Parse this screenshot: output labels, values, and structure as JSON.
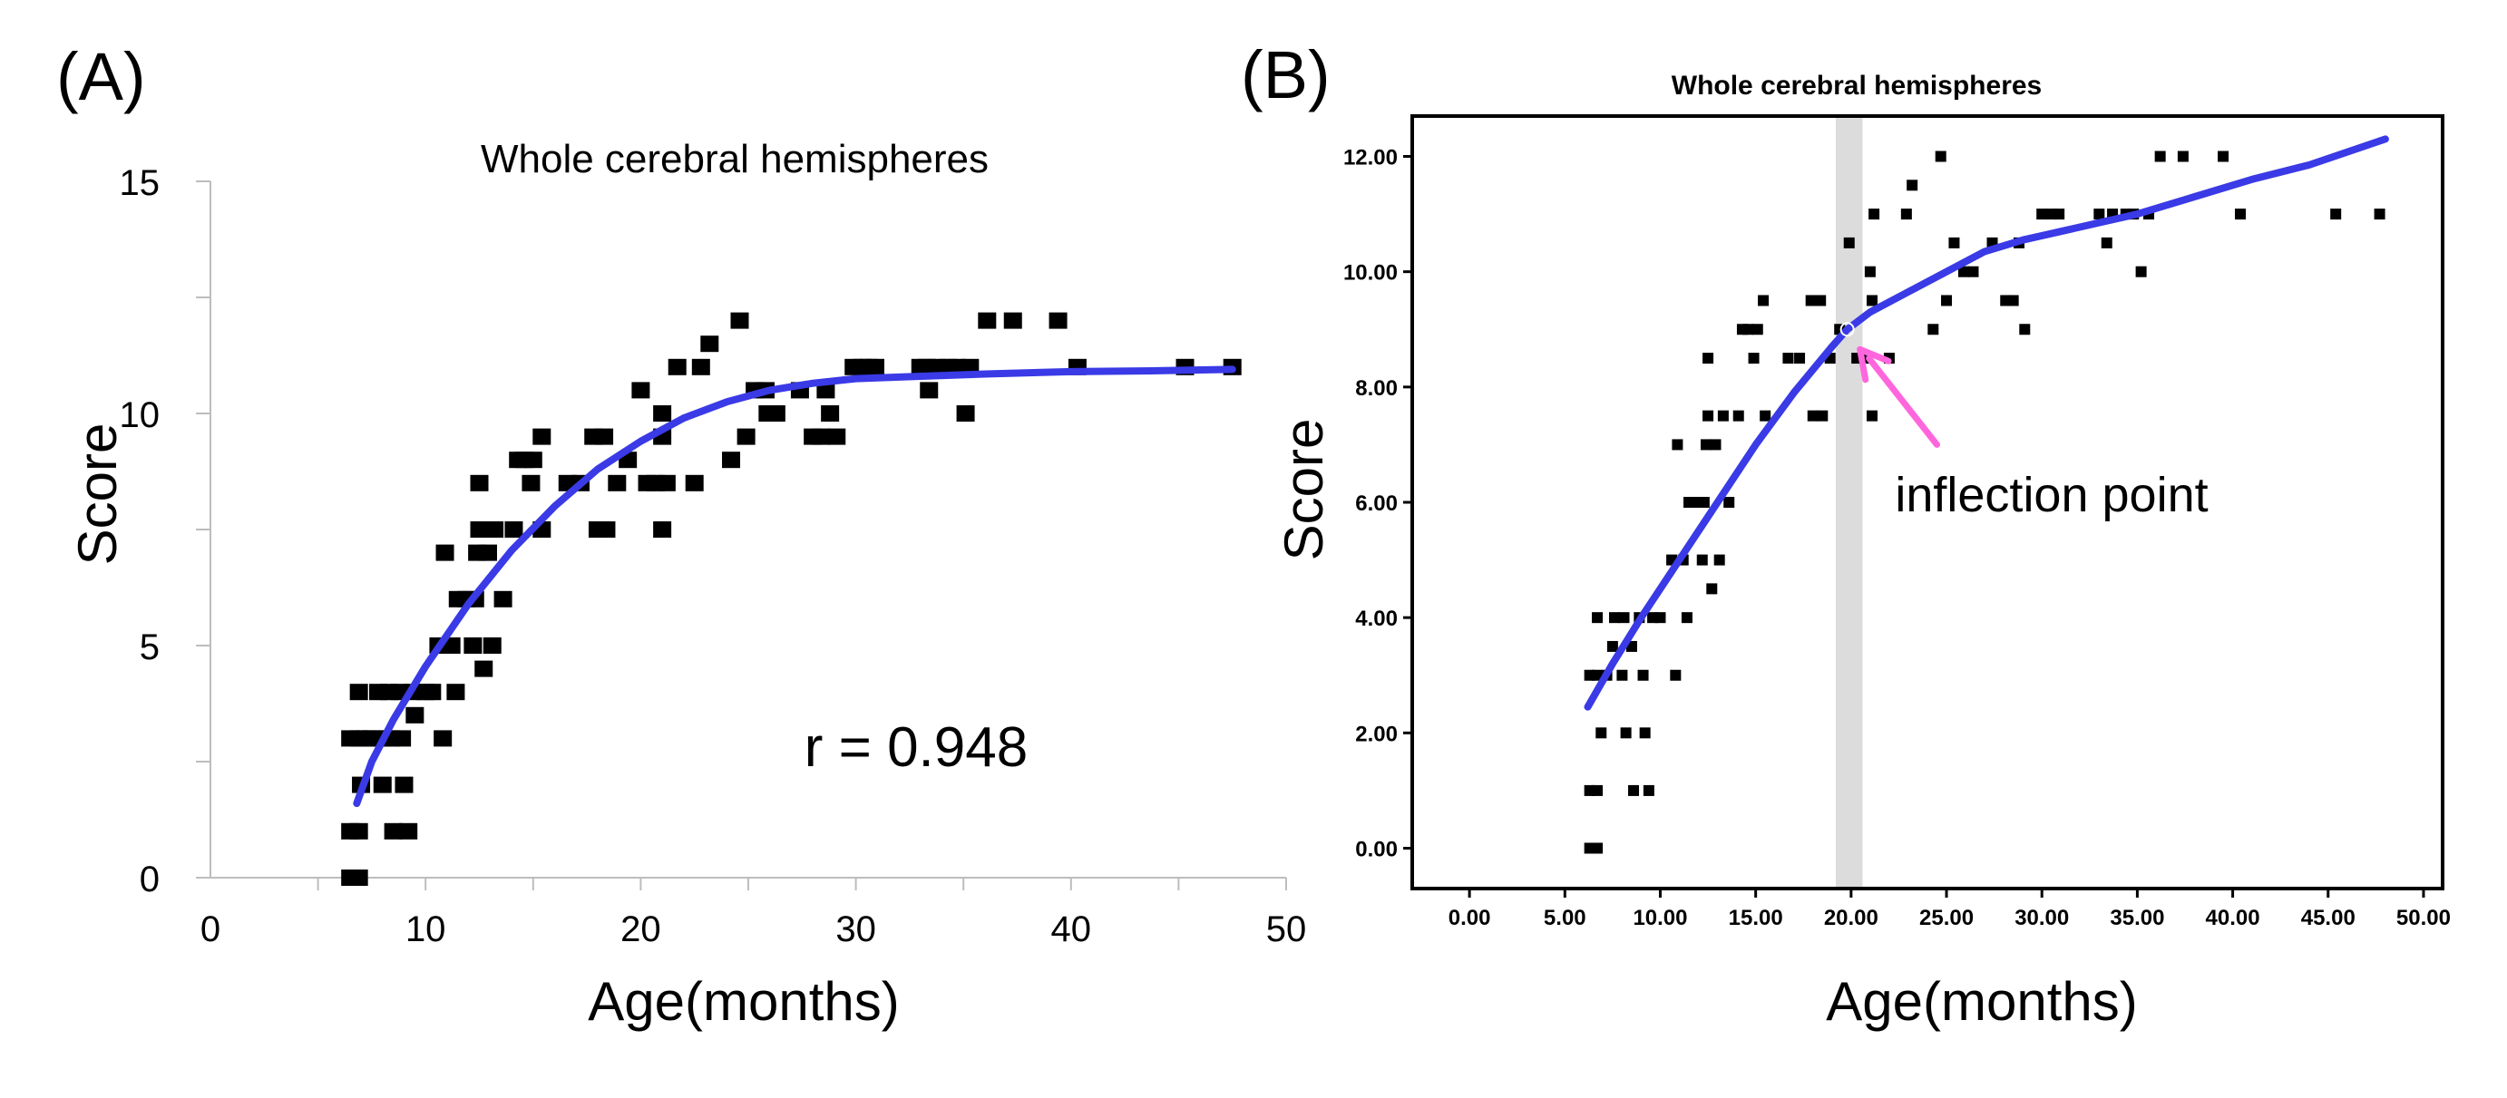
{
  "colors": {
    "fit": "#3a3ae6",
    "arrow": "#ff66dd",
    "point": "#000000",
    "band": "#dcdcdc"
  },
  "chart_data": [
    {
      "panel": "(A)",
      "type": "scatter",
      "title": "Whole cerebral hemispheres",
      "xlabel": "Age(months)",
      "ylabel": "Score",
      "xlim": [
        0,
        50
      ],
      "ylim": [
        0,
        15
      ],
      "xticks": [
        0,
        10,
        20,
        30,
        40,
        50
      ],
      "yticks": [
        0,
        5,
        10,
        15
      ],
      "xtick_labels": [
        "0",
        "10",
        "20",
        "30",
        "40",
        "50"
      ],
      "ytick_labels": [
        "0",
        "5",
        "10",
        "15"
      ],
      "annotation": "r = 0.948",
      "points": [
        [
          6.5,
          0
        ],
        [
          6.9,
          0
        ],
        [
          6.5,
          1
        ],
        [
          6.9,
          1
        ],
        [
          6.5,
          3
        ],
        [
          6.9,
          3
        ],
        [
          7.2,
          3
        ],
        [
          6.9,
          4
        ],
        [
          7.0,
          2
        ],
        [
          7.5,
          3
        ],
        [
          7.8,
          4
        ],
        [
          8.0,
          3
        ],
        [
          8.0,
          2
        ],
        [
          8.3,
          4
        ],
        [
          8.4,
          3
        ],
        [
          8.5,
          1
        ],
        [
          8.8,
          4
        ],
        [
          8.9,
          3
        ],
        [
          9.0,
          2
        ],
        [
          9.2,
          1
        ],
        [
          9.4,
          4
        ],
        [
          9.5,
          3.5
        ],
        [
          10.0,
          4
        ],
        [
          10.3,
          4
        ],
        [
          10.6,
          5
        ],
        [
          10.8,
          3
        ],
        [
          10.9,
          7
        ],
        [
          11.2,
          5
        ],
        [
          11.4,
          4
        ],
        [
          11.5,
          6
        ],
        [
          11.9,
          6
        ],
        [
          12.2,
          5
        ],
        [
          12.3,
          6
        ],
        [
          12.4,
          7
        ],
        [
          12.5,
          7.5
        ],
        [
          12.5,
          8.5
        ],
        [
          12.7,
          4.5
        ],
        [
          12.9,
          7
        ],
        [
          13.1,
          5
        ],
        [
          13.2,
          7.5
        ],
        [
          13.6,
          6
        ],
        [
          14.1,
          7.5
        ],
        [
          14.3,
          9
        ],
        [
          14.6,
          9
        ],
        [
          14.9,
          8.5
        ],
        [
          15.0,
          9
        ],
        [
          15.4,
          9.5
        ],
        [
          15.4,
          7.5
        ],
        [
          16.6,
          8.5
        ],
        [
          17.2,
          8.5
        ],
        [
          17.8,
          9.5
        ],
        [
          18.0,
          7.5
        ],
        [
          18.3,
          9.5
        ],
        [
          18.4,
          7.5
        ],
        [
          18.9,
          8.5
        ],
        [
          19.4,
          9
        ],
        [
          20.0,
          10.5
        ],
        [
          20.3,
          8.5
        ],
        [
          20.7,
          8.5
        ],
        [
          21.0,
          10
        ],
        [
          21.0,
          9.5
        ],
        [
          21.0,
          7.5
        ],
        [
          21.2,
          8.5
        ],
        [
          21.7,
          11
        ],
        [
          22.5,
          8.5
        ],
        [
          22.8,
          11
        ],
        [
          23.2,
          11.5
        ],
        [
          24.2,
          9
        ],
        [
          24.6,
          12
        ],
        [
          24.9,
          9.5
        ],
        [
          25.3,
          10.5
        ],
        [
          25.8,
          10.5
        ],
        [
          25.9,
          10
        ],
        [
          26.3,
          10
        ],
        [
          27.4,
          10.5
        ],
        [
          28.0,
          9.5
        ],
        [
          28.4,
          9.5
        ],
        [
          28.6,
          10.5
        ],
        [
          28.8,
          10
        ],
        [
          29.1,
          9.5
        ],
        [
          29.9,
          11
        ],
        [
          30.3,
          11
        ],
        [
          30.6,
          11
        ],
        [
          30.9,
          11
        ],
        [
          33.0,
          11
        ],
        [
          33.3,
          11
        ],
        [
          33.4,
          10.5
        ],
        [
          33.8,
          11
        ],
        [
          34.3,
          11
        ],
        [
          34.7,
          11
        ],
        [
          35.1,
          10
        ],
        [
          35.3,
          11
        ],
        [
          36.1,
          12
        ],
        [
          37.3,
          12
        ],
        [
          39.4,
          12
        ],
        [
          40.3,
          11
        ],
        [
          45.3,
          11
        ],
        [
          47.5,
          11
        ]
      ],
      "fit_line": [
        [
          6.8,
          1.6
        ],
        [
          7.5,
          2.5
        ],
        [
          8.5,
          3.4
        ],
        [
          10,
          4.55
        ],
        [
          12,
          5.9
        ],
        [
          14,
          7.05
        ],
        [
          16,
          8.0
        ],
        [
          18,
          8.8
        ],
        [
          20,
          9.4
        ],
        [
          22,
          9.9
        ],
        [
          24,
          10.25
        ],
        [
          26,
          10.5
        ],
        [
          28,
          10.65
        ],
        [
          30,
          10.75
        ],
        [
          33,
          10.8
        ],
        [
          36,
          10.85
        ],
        [
          40,
          10.9
        ],
        [
          44,
          10.92
        ],
        [
          47.5,
          10.95
        ]
      ]
    },
    {
      "panel": "(B)",
      "type": "scatter",
      "title": "Whole cerebral hemispheres",
      "xlabel": "Age(months)",
      "ylabel": "Score",
      "xlim": [
        -3,
        51
      ],
      "ylim": [
        -0.7,
        12.7
      ],
      "xticks": [
        0,
        5,
        10,
        15,
        20,
        25,
        30,
        35,
        40,
        45,
        50
      ],
      "yticks": [
        0,
        2,
        4,
        6,
        8,
        10,
        12
      ],
      "xtick_labels": [
        "0.00",
        "5.00",
        "10.00",
        "15.00",
        "20.00",
        "25.00",
        "30.00",
        "35.00",
        "40.00",
        "45.00",
        "50.00"
      ],
      "ytick_labels": [
        "0.00",
        "2.00",
        "4.00",
        "6.00",
        "8.00",
        "10.00",
        "12.00"
      ],
      "annotation": "inflection point",
      "highlight_x": [
        19.2,
        20.6
      ],
      "inflection": [
        19.8,
        9.0
      ],
      "arrow_from": [
        24.5,
        7.0
      ],
      "points": [
        [
          6.3,
          0
        ],
        [
          6.7,
          0
        ],
        [
          6.3,
          1
        ],
        [
          6.7,
          1
        ],
        [
          6.3,
          3
        ],
        [
          6.7,
          3
        ],
        [
          6.9,
          2
        ],
        [
          6.7,
          4
        ],
        [
          7.2,
          3
        ],
        [
          7.5,
          3.5
        ],
        [
          7.6,
          4
        ],
        [
          8.0,
          3
        ],
        [
          8.1,
          4
        ],
        [
          8.2,
          2
        ],
        [
          8.5,
          3.5
        ],
        [
          8.6,
          1
        ],
        [
          8.9,
          4
        ],
        [
          9.1,
          3
        ],
        [
          9.2,
          2
        ],
        [
          9.4,
          1
        ],
        [
          9.6,
          4
        ],
        [
          10.0,
          4
        ],
        [
          10.6,
          5
        ],
        [
          10.8,
          3
        ],
        [
          10.9,
          7
        ],
        [
          11.2,
          5
        ],
        [
          11.4,
          4
        ],
        [
          11.5,
          6
        ],
        [
          11.9,
          6
        ],
        [
          12.2,
          5
        ],
        [
          12.3,
          6
        ],
        [
          12.4,
          7
        ],
        [
          12.5,
          7.5
        ],
        [
          12.5,
          8.5
        ],
        [
          12.7,
          4.5
        ],
        [
          12.9,
          7
        ],
        [
          13.1,
          5
        ],
        [
          13.3,
          7.5
        ],
        [
          13.6,
          6
        ],
        [
          14.1,
          7.5
        ],
        [
          14.3,
          9
        ],
        [
          14.6,
          9
        ],
        [
          14.9,
          8.5
        ],
        [
          15.1,
          9
        ],
        [
          15.4,
          9.5
        ],
        [
          15.5,
          7.5
        ],
        [
          16.7,
          8.5
        ],
        [
          17.3,
          8.5
        ],
        [
          17.9,
          9.5
        ],
        [
          18.0,
          7.5
        ],
        [
          18.4,
          9.5
        ],
        [
          18.5,
          7.5
        ],
        [
          18.9,
          8.5
        ],
        [
          19.4,
          9
        ],
        [
          19.9,
          10.5
        ],
        [
          20.3,
          8.5
        ],
        [
          20.7,
          8.5
        ],
        [
          21.0,
          10
        ],
        [
          21.1,
          9.5
        ],
        [
          21.1,
          7.5
        ],
        [
          21.2,
          11
        ],
        [
          22.0,
          8.5
        ],
        [
          22.9,
          11
        ],
        [
          23.2,
          11.5
        ],
        [
          24.3,
          9
        ],
        [
          24.7,
          12
        ],
        [
          25.0,
          9.5
        ],
        [
          25.4,
          10.5
        ],
        [
          25.9,
          10
        ],
        [
          26.4,
          10
        ],
        [
          27.4,
          10.5
        ],
        [
          28.1,
          9.5
        ],
        [
          28.5,
          9.5
        ],
        [
          28.8,
          10.5
        ],
        [
          29.1,
          9
        ],
        [
          30.0,
          11
        ],
        [
          30.5,
          11
        ],
        [
          30.9,
          11
        ],
        [
          33.0,
          11
        ],
        [
          33.4,
          10.5
        ],
        [
          33.7,
          11
        ],
        [
          34.4,
          11
        ],
        [
          34.8,
          11
        ],
        [
          35.2,
          10
        ],
        [
          35.6,
          11
        ],
        [
          36.2,
          12
        ],
        [
          37.4,
          12
        ],
        [
          39.5,
          12
        ],
        [
          40.4,
          11
        ],
        [
          45.4,
          11
        ],
        [
          47.7,
          11
        ]
      ],
      "fit_line": [
        [
          6.2,
          2.45
        ],
        [
          7.5,
          3.2
        ],
        [
          9,
          4.0
        ],
        [
          11,
          5.0
        ],
        [
          13,
          6.0
        ],
        [
          15,
          7.0
        ],
        [
          17,
          7.9
        ],
        [
          19,
          8.7
        ],
        [
          19.8,
          9.0
        ],
        [
          21,
          9.3
        ],
        [
          23,
          9.65
        ],
        [
          25,
          10.0
        ],
        [
          27,
          10.35
        ],
        [
          29,
          10.55
        ],
        [
          31,
          10.7
        ],
        [
          33,
          10.85
        ],
        [
          35,
          11.0
        ],
        [
          38,
          11.3
        ],
        [
          41,
          11.6
        ],
        [
          44,
          11.85
        ],
        [
          48,
          12.3
        ]
      ]
    }
  ],
  "panel_a_r_text": "r = 0.948"
}
